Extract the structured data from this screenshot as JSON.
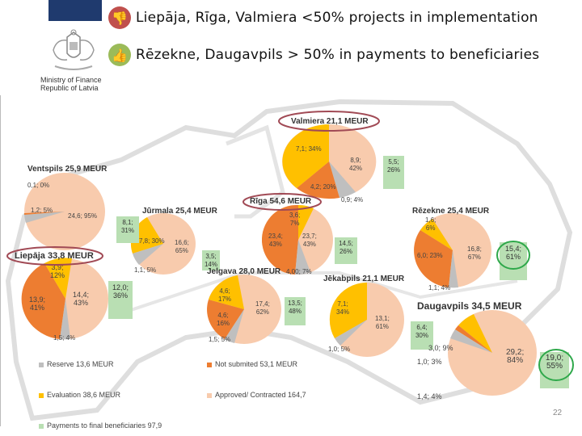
{
  "header": {
    "line1": "Liepāja, Rīga, Valmiera <50% projects in implementation",
    "line2": "Rēzekne, Daugavpils > 50% in payments to beneficiaries",
    "ministry_line1": "Ministry of Finance",
    "ministry_line2": "Republic of Latvia",
    "icon1": "thumbs-down-icon",
    "icon2": "thumbs-up-icon"
  },
  "colors": {
    "reserve": "#bfbfbf",
    "not_submitted": "#ed7d31",
    "evaluation": "#ffc000",
    "approved": "#f8cbad",
    "payments": "#b9dfb3",
    "thumb_down": "#c0504d",
    "thumb_up": "#9bbb59"
  },
  "regions": {
    "valmiera": {
      "title": "Valmiera 21,1 MEUR",
      "l1": "7,1; 34%",
      "l2": "8,9;\n42%",
      "l3": "4,2; 20%",
      "l4": "0,9; 4%",
      "pay": "5,5;\n26%"
    },
    "ventspils": {
      "title": "Ventspils 25,9 MEUR",
      "l1": "0,1; 0%",
      "l2": "1,2; 5%",
      "l3": "24,6; 95%"
    },
    "jurmala": {
      "title": "Jūrmala 25,4 MEUR",
      "l1": "7,8; 30%",
      "l2": "16,6;\n65%",
      "l3": "1,1; 5%",
      "pay1": "8,1;\n31%",
      "pay2": "3,5;\n14%"
    },
    "riga": {
      "title": "Rīga 54,6 MEUR",
      "l1": "3,6;\n7%",
      "l2": "23,4;\n43%",
      "l3": "23,7;\n43%",
      "l4": "4,00; 7%",
      "pay": "14,5;\n26%"
    },
    "rezekne": {
      "title": "Rēzekne 25,4 MEUR",
      "l1": "1,6;\n6%",
      "l2": "6,0; 23%",
      "l3": "16,8;\n67%",
      "l4": "1,1; 4%",
      "pay": "15,4;\n61%"
    },
    "liepaja": {
      "title": "Liepāja 33,8 MEUR",
      "l1": "3,9;\n12%",
      "l2": "13,9;\n41%",
      "l3": "14,4;\n43%",
      "l4": "1,5; 4%",
      "pay": "12,0;\n36%"
    },
    "jelgava": {
      "title": "Jelgava 28,0 MEUR",
      "l1": "4,6;\n17%",
      "l2": "4,6;\n16%",
      "l3": "17,4;\n62%",
      "l4": "1,5; 5%",
      "pay": "13,5;\n48%"
    },
    "jekabpils": {
      "title": "Jēkabpils 21,1 MEUR",
      "l1": "7,1;\n34%",
      "l2": "13,1;\n61%",
      "l3": "1,0; 5%",
      "pay": "6,4;\n30%"
    },
    "daugavpils": {
      "title": "Daugavpils 34,5 MEUR",
      "l1": "3,0; 9%",
      "l2": "1,0; 3%",
      "l3": "29,2;\n84%",
      "l4": "1,4; 4%",
      "pay": "19,0;\n55%"
    }
  },
  "legend": {
    "reserve": "Reserve 13,6 MEUR",
    "not_submitted": "Not submited 53,1 MEUR",
    "evaluation": "Evaluation 38,6 MEUR",
    "approved": "Approved/ Contracted 164,7",
    "payments": "Payments to final beneficiaries 97,9"
  },
  "page_number": "22"
}
